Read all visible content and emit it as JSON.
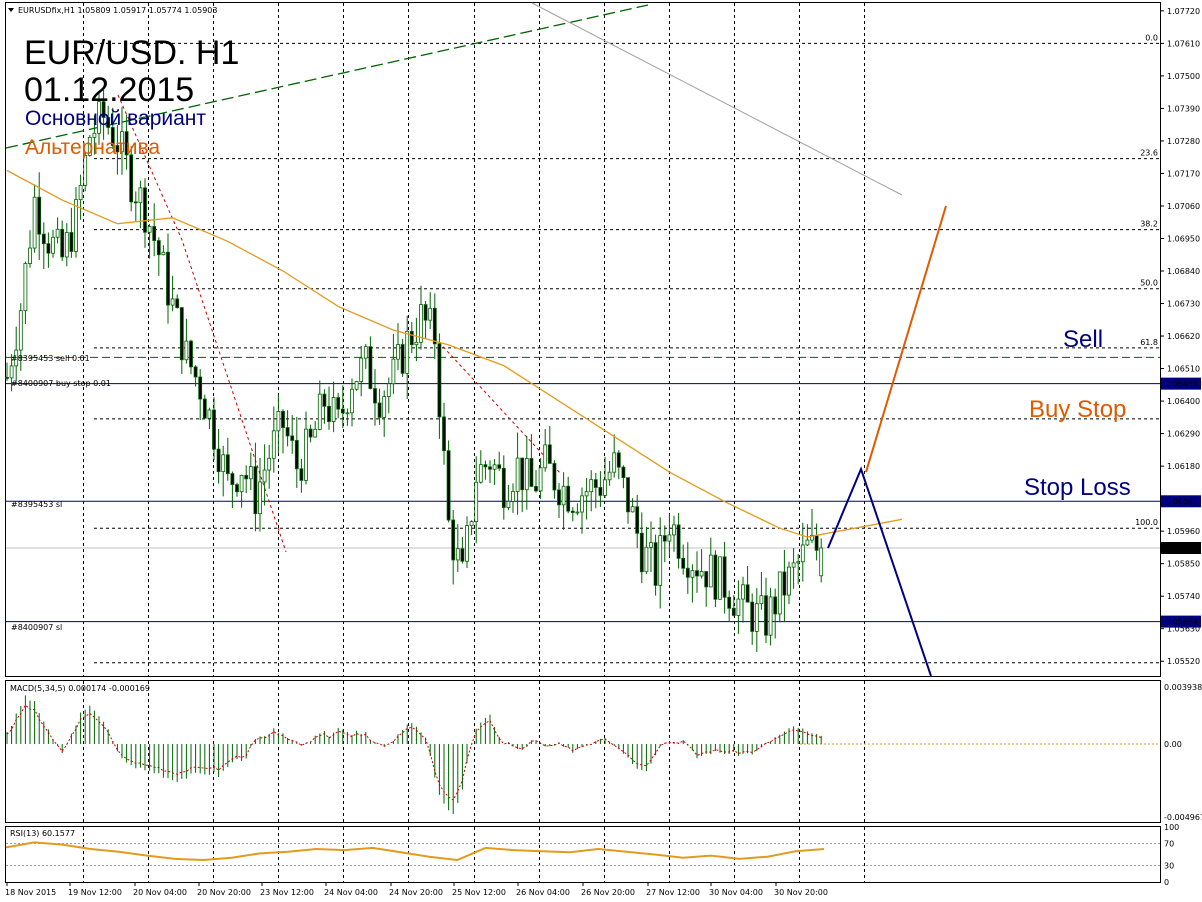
{
  "window": {
    "header": "EURUSDfix,H1  1.05809 1.05917 1.05774 1.05903"
  },
  "headline": {
    "pair": "EUR/USD. H1",
    "date": "01.12.2015",
    "main_variant": "Основной вариант",
    "alternative": "Альтернатива"
  },
  "colors": {
    "main_variant": "#000080",
    "alternative": "#e05a00",
    "candle": "#006400",
    "ma": "#e39a1f",
    "trend_dashed": "#006400",
    "fib": "#000000",
    "macd_signal": "#d00000",
    "rsi_line": "#e39a1f"
  },
  "order_labels": [
    "#8395453 sell 0.01",
    "#8400907 buy stop 0.01",
    "#8395453 sl",
    "#8400907 sl"
  ],
  "annotations": {
    "sell": "Sell",
    "buy_stop": "Buy Stop",
    "stop_loss": "Stop Loss"
  },
  "fib_levels": [
    {
      "label": "0.0",
      "price": 1.0761
    },
    {
      "label": "23.6",
      "price": 1.0722
    },
    {
      "label": "38.2",
      "price": 1.0698
    },
    {
      "label": "50.0",
      "price": 1.0678
    },
    {
      "label": "61.8",
      "price": 1.0658
    },
    {
      "label": "100.0",
      "price": 1.0597
    }
  ],
  "price_axis": {
    "ticks": [
      "1.07720",
      "1.07610",
      "1.07500",
      "1.07390",
      "1.07280",
      "1.07170",
      "1.07060",
      "1.06950",
      "1.06840",
      "1.06730",
      "1.06620",
      "1.06510",
      "1.06400",
      "1.06290",
      "1.06180",
      "1.06070",
      "1.05960",
      "1.05850",
      "1.05740",
      "1.05630",
      "1.05520"
    ],
    "markers": [
      {
        "text": "1.06459",
        "price": 1.06459
      },
      {
        "text": "1.06061",
        "price": 1.06061
      },
      {
        "text": "1.05903",
        "price": 1.05903
      },
      {
        "text": "1.05654",
        "price": 1.05654
      }
    ]
  },
  "time_axis": [
    "18 Nov 2015",
    "19 Nov 12:00",
    "20 Nov 04:00",
    "20 Nov 20:00",
    "23 Nov 12:00",
    "24 Nov 04:00",
    "24 Nov 20:00",
    "25 Nov 12:00",
    "26 Nov 04:00",
    "26 Nov 20:00",
    "27 Nov 12:00",
    "30 Nov 04:00",
    "30 Nov 20:00"
  ],
  "macd": {
    "label": "MACD(5,34,5) 0.000174 -0.000169",
    "ticks": [
      "0.003938",
      "0.00",
      "-0.004967"
    ]
  },
  "rsi": {
    "label": "RSI(13) 60.1577",
    "ticks": [
      "100",
      "70",
      "30",
      "0"
    ]
  },
  "chart_data": {
    "type": "candlestick",
    "symbol": "EURUSDfix",
    "timeframe": "H1",
    "last_bar": {
      "open": 1.05809,
      "high": 1.05917,
      "low": 1.05774,
      "close": 1.05903
    },
    "ylim": [
      1.0547,
      1.0775
    ],
    "close_path": [
      [
        0,
        1.0648
      ],
      [
        3,
        1.0672
      ],
      [
        6,
        1.0708
      ],
      [
        9,
        1.0695
      ],
      [
        12,
        1.0688
      ],
      [
        15,
        1.0702
      ],
      [
        18,
        1.073
      ],
      [
        21,
        1.0736
      ],
      [
        24,
        1.0728
      ],
      [
        27,
        1.0715
      ],
      [
        30,
        1.0705
      ],
      [
        33,
        1.069
      ],
      [
        36,
        1.0672
      ],
      [
        39,
        1.0655
      ],
      [
        42,
        1.0645
      ],
      [
        45,
        1.063
      ],
      [
        48,
        1.0612
      ],
      [
        51,
        1.0618
      ],
      [
        54,
        1.0608
      ],
      [
        57,
        1.0622
      ],
      [
        60,
        1.0632
      ],
      [
        63,
        1.0618
      ],
      [
        66,
        1.0625
      ],
      [
        69,
        1.064
      ],
      [
        72,
        1.0632
      ],
      [
        75,
        1.0648
      ],
      [
        78,
        1.0652
      ],
      [
        81,
        1.0642
      ],
      [
        84,
        1.0648
      ],
      [
        87,
        1.066
      ],
      [
        90,
        1.0668
      ],
      [
        93,
        1.0662
      ],
      [
        96,
        1.0598
      ],
      [
        99,
        1.058
      ],
      [
        102,
        1.0615
      ],
      [
        105,
        1.062
      ],
      [
        108,
        1.0612
      ],
      [
        111,
        1.0618
      ],
      [
        114,
        1.061
      ],
      [
        117,
        1.0618
      ],
      [
        120,
        1.0612
      ],
      [
        123,
        1.0608
      ],
      [
        126,
        1.061
      ],
      [
        129,
        1.0612
      ],
      [
        132,
        1.0618
      ],
      [
        135,
        1.0606
      ],
      [
        138,
        1.059
      ],
      [
        141,
        1.0582
      ],
      [
        144,
        1.06
      ],
      [
        147,
        1.059
      ],
      [
        150,
        1.0585
      ],
      [
        153,
        1.0582
      ],
      [
        156,
        1.0578
      ],
      [
        159,
        1.0572
      ],
      [
        162,
        1.0568
      ],
      [
        165,
        1.0566
      ],
      [
        168,
        1.0575
      ],
      [
        171,
        1.0582
      ],
      [
        174,
        1.059
      ]
    ],
    "moving_average": [
      [
        0,
        1.0718
      ],
      [
        12,
        1.0708
      ],
      [
        24,
        1.07
      ],
      [
        36,
        1.0702
      ],
      [
        48,
        1.0694
      ],
      [
        60,
        1.0684
      ],
      [
        72,
        1.0672
      ],
      [
        84,
        1.0664
      ],
      [
        96,
        1.0659
      ],
      [
        108,
        1.0652
      ],
      [
        120,
        1.064
      ],
      [
        132,
        1.0628
      ],
      [
        144,
        1.0616
      ],
      [
        156,
        1.0606
      ],
      [
        168,
        1.0597
      ],
      [
        174,
        1.0594
      ]
    ],
    "scenario_main": [
      [
        1.05903
      ],
      [
        1.0617
      ],
      [
        1.0547
      ]
    ],
    "scenario_alternative": [
      [
        1.0616
      ],
      [
        1.0706
      ]
    ],
    "macd_hist": [],
    "rsi_values": [
      63,
      72,
      68,
      60,
      55,
      48,
      42,
      40,
      44,
      52,
      55,
      60,
      58,
      62,
      54,
      46,
      40,
      62,
      58,
      56,
      54,
      60,
      55,
      50,
      44,
      48,
      42,
      46,
      56,
      60
    ]
  }
}
